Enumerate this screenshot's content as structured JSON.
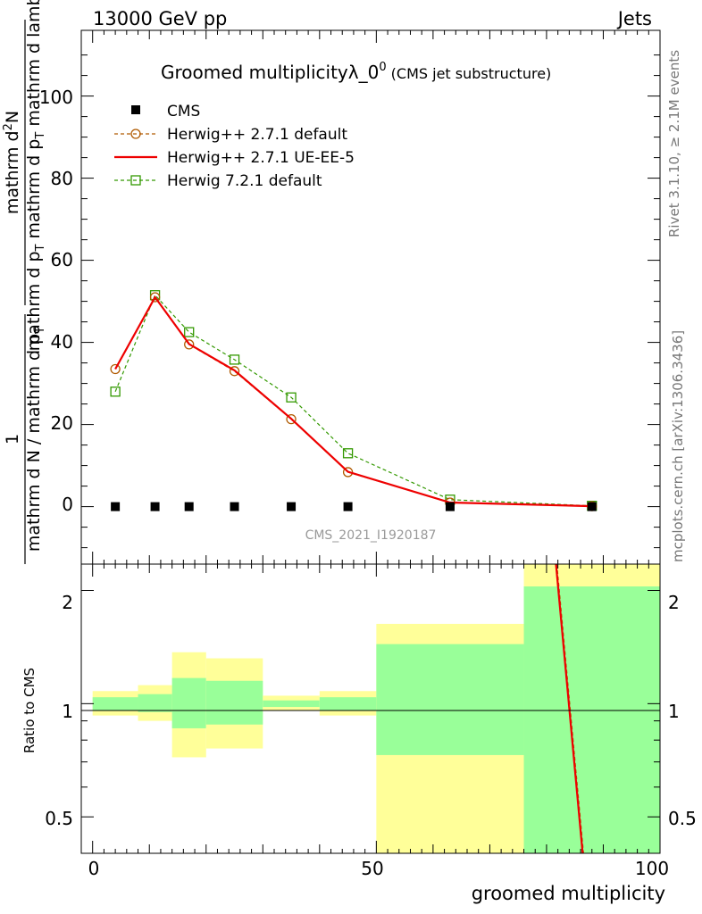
{
  "header": {
    "left": "13000 GeV pp",
    "right": "Jets"
  },
  "title": {
    "main": "Groomed multiplicity",
    "lambda": "λ_0",
    "sup": "0",
    "sub": " (CMS jet substructure)"
  },
  "watermark": "CMS_2021_I1920187",
  "side_text": {
    "rivet": "Rivet 3.1.10, ≥ 2.1M events",
    "mcplots": "mcplots.cern.ch [arXiv:1306.3436]"
  },
  "ylabel_main": {
    "frac_num": "1",
    "frac_den": "mathrm d N / mathrm d p",
    "frac_den_sub": "T",
    "rest": "mathrm d p",
    "rest_sub1": "T",
    "rest2": " mathrm d p",
    "rest2_sub": "T",
    "rest3": " mathrm d lambda",
    "top": "mathrm d",
    "top_sup": "2",
    "top2": "N"
  },
  "ylabel_ratio": "Ratio to CMS",
  "xlabel": "groomed multiplicity",
  "main_ticks": [
    "0",
    "20",
    "40",
    "60",
    "80",
    "100"
  ],
  "ratio_ticks": [
    "0.5",
    "1",
    "2"
  ],
  "x_ticks": [
    "0",
    "50",
    "100"
  ],
  "chart_data": {
    "type": "line",
    "xlabel": "groomed multiplicity",
    "ylabel": "1/(dN/dpT) d²N/dpT dlambda",
    "xlim": [
      -2,
      100
    ],
    "ylim": [
      -14,
      116
    ],
    "ratio_ylim": [
      0.4,
      2.35
    ],
    "grid": false,
    "legend_position": "top-left",
    "bins": [
      [
        0,
        8
      ],
      [
        8,
        14
      ],
      [
        14,
        20
      ],
      [
        20,
        30
      ],
      [
        30,
        40
      ],
      [
        40,
        50
      ],
      [
        50,
        76
      ],
      [
        76,
        100
      ]
    ],
    "x": [
      4,
      11,
      17,
      25,
      35,
      45,
      63,
      88
    ],
    "series": [
      {
        "name": "CMS",
        "style": "data",
        "color": "#000000",
        "values": [
          0,
          0,
          0,
          0,
          0,
          0,
          0,
          0
        ]
      },
      {
        "name": "Herwig++ 2.7.1 default",
        "style": "circle-dashed",
        "color": "#b05a00",
        "values": [
          33.5,
          51.0,
          39.5,
          33.0,
          21.3,
          8.4,
          1.0,
          0.1
        ]
      },
      {
        "name": "Herwig++ 2.7.1 UE-EE-5",
        "style": "solid",
        "color": "#ee0000",
        "values": [
          33.5,
          51.0,
          39.6,
          33.2,
          21.4,
          8.5,
          1.0,
          0.1
        ]
      },
      {
        "name": "Herwig 7.2.1 default",
        "style": "square-dashed",
        "color": "#339900",
        "values": [
          28.0,
          51.5,
          42.5,
          35.8,
          26.6,
          13.0,
          1.7,
          0.2
        ]
      }
    ],
    "ratio_bands": {
      "green_upper": [
        1.04,
        1.06,
        1.17,
        1.15,
        1.02,
        1.04,
        1.44,
        2.05
      ],
      "green_lower": [
        0.96,
        0.95,
        0.86,
        0.88,
        0.98,
        0.96,
        0.73,
        0.3
      ],
      "yellow_upper": [
        1.08,
        1.12,
        1.37,
        1.32,
        1.05,
        1.08,
        1.63,
        2.4
      ],
      "yellow_lower": [
        0.93,
        0.9,
        0.72,
        0.76,
        0.96,
        0.93,
        0.3,
        0.3
      ]
    },
    "ratio_line": {
      "x": [
        81.5,
        86.5
      ],
      "y": [
        2.5,
        0.38
      ]
    }
  }
}
